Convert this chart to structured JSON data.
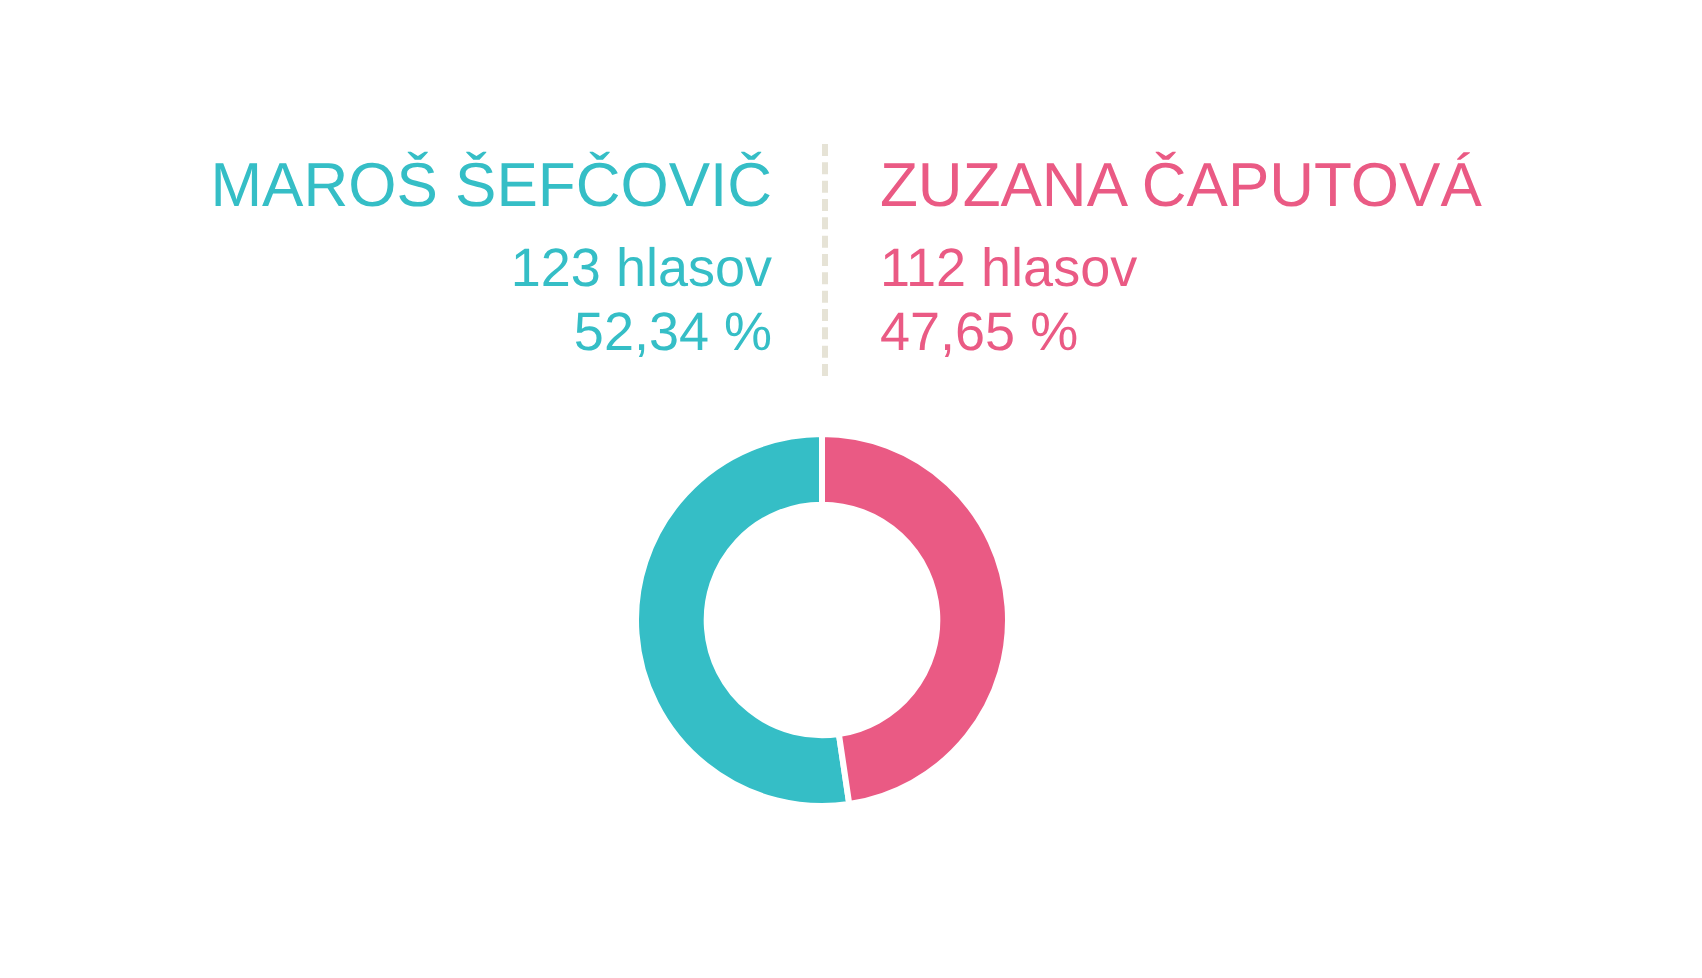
{
  "chart_data": {
    "type": "donut",
    "categories": [
      "MAROŠ ŠEFČOVIČ",
      "ZUZANA ČAPUTOVÁ"
    ],
    "values": [
      123,
      112
    ],
    "colors": [
      "#35bec6",
      "#ea5a84"
    ],
    "value_labels": [
      "123 hlasov",
      "112 hlasov"
    ],
    "annotations": [
      "52,34 %",
      "47,65 %"
    ],
    "legend": false
  }
}
